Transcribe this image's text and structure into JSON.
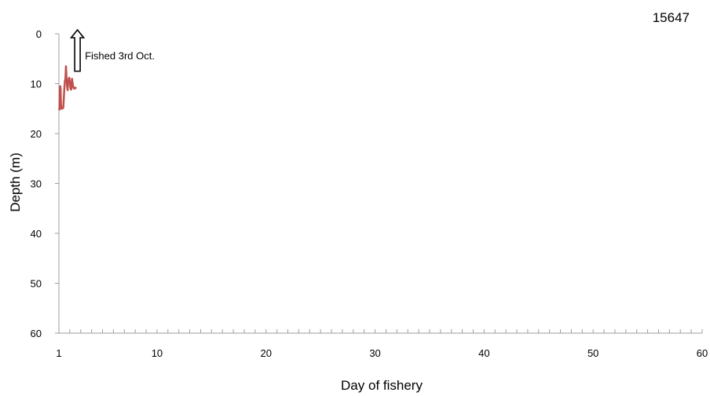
{
  "chart_data": {
    "type": "line",
    "corner_label": "15647",
    "xlabel": "Day of fishery",
    "ylabel": "Depth (m)",
    "xlim": [
      1,
      60
    ],
    "ylim": [
      0,
      60
    ],
    "y_inverted": true,
    "x_ticks": [
      1,
      10,
      20,
      30,
      40,
      50,
      60
    ],
    "y_ticks": [
      0,
      10,
      20,
      30,
      40,
      50,
      60
    ],
    "x_minor_tick_step": 1,
    "grid": false,
    "legend": "none",
    "series": [
      {
        "color": "#c0504d",
        "x": [
          1.0,
          1.05,
          1.1,
          1.13,
          1.16,
          1.19,
          1.22,
          1.3,
          1.4,
          1.5,
          1.55,
          1.6,
          1.65,
          1.7,
          1.75,
          1.8,
          1.85,
          1.9,
          1.95,
          2.0,
          2.05,
          2.1,
          2.15,
          2.2,
          2.3,
          2.4,
          2.5,
          2.6
        ],
        "y": [
          15.0,
          15.2,
          11.0,
          10.5,
          11.2,
          14.0,
          15.0,
          15.0,
          14.8,
          11.0,
          9.5,
          9.0,
          6.5,
          9.0,
          10.5,
          11.3,
          9.5,
          9.0,
          8.8,
          9.5,
          10.8,
          11.2,
          11.0,
          9.0,
          10.5,
          11.0,
          10.8,
          11.0
        ]
      }
    ],
    "annotation": {
      "text": "Fished 3rd Oct.",
      "x": 2.7,
      "y_from": 7.5,
      "y_to": 0.0
    }
  }
}
